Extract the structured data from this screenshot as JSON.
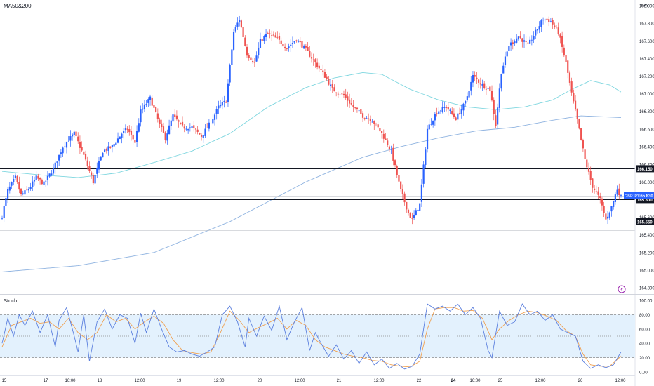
{
  "chart_data": [
    {
      "type": "candlestick",
      "title": "MA50&200",
      "currency_label": "JPY",
      "symbol": "GBPJPY",
      "ylim": [
        164.8,
        168.0
      ],
      "yticks": [
        "164.800",
        "165.000",
        "165.200",
        "165.400",
        "165.600",
        "165.800",
        "166.000",
        "166.200",
        "166.400",
        "166.600",
        "166.800",
        "167.000",
        "167.200",
        "167.400",
        "167.600",
        "167.800",
        "168.000"
      ],
      "hlines": [
        {
          "label": "166.150",
          "value": 166.15,
          "color": "#131722"
        },
        {
          "label": "165.800",
          "value": 165.8,
          "color": "#131722"
        },
        {
          "label": "165.550",
          "value": 165.55,
          "color": "#131722"
        }
      ],
      "last_price": {
        "symbol": "GBPJPY",
        "value": "165.830",
        "price": 165.83,
        "color": "#2962ff"
      },
      "colors": {
        "up": "#2962ff",
        "down": "#ef5350",
        "ma50": "#7ed6df",
        "ma200": "#8fb3e0"
      },
      "x_tick_labels": [
        "15",
        "17",
        "16:00",
        "18",
        "12:00",
        "19",
        "12:00",
        "20",
        "12:00",
        "21",
        "12:00",
        "22",
        "24",
        "16:00",
        "25",
        "12:00",
        "26",
        "12:00"
      ],
      "close_anchors": [
        [
          0,
          165.62
        ],
        [
          3,
          165.9
        ],
        [
          7,
          166.05
        ],
        [
          10,
          165.85
        ],
        [
          14,
          165.92
        ],
        [
          18,
          166.05
        ],
        [
          22,
          165.98
        ],
        [
          27,
          166.15
        ],
        [
          32,
          166.4
        ],
        [
          38,
          166.55
        ],
        [
          43,
          166.3
        ],
        [
          48,
          166.0
        ],
        [
          53,
          166.35
        ],
        [
          58,
          166.4
        ],
        [
          63,
          166.55
        ],
        [
          66,
          166.6
        ],
        [
          70,
          166.45
        ],
        [
          73,
          166.8
        ],
        [
          78,
          166.95
        ],
        [
          83,
          166.65
        ],
        [
          86,
          166.5
        ],
        [
          90,
          166.75
        ],
        [
          95,
          166.62
        ],
        [
          100,
          166.62
        ],
        [
          105,
          166.52
        ],
        [
          110,
          166.68
        ],
        [
          114,
          166.85
        ],
        [
          118,
          166.92
        ],
        [
          122,
          167.7
        ],
        [
          125,
          167.85
        ],
        [
          129,
          167.45
        ],
        [
          133,
          167.35
        ],
        [
          136,
          167.6
        ],
        [
          140,
          167.68
        ],
        [
          145,
          167.62
        ],
        [
          150,
          167.52
        ],
        [
          155,
          167.62
        ],
        [
          160,
          167.5
        ],
        [
          165,
          167.35
        ],
        [
          170,
          167.2
        ],
        [
          174,
          167.05
        ],
        [
          180,
          166.98
        ],
        [
          185,
          166.85
        ],
        [
          190,
          166.75
        ],
        [
          195,
          166.7
        ],
        [
          200,
          166.55
        ],
        [
          205,
          166.35
        ],
        [
          210,
          165.9
        ],
        [
          214,
          165.65
        ],
        [
          216,
          165.57
        ],
        [
          220,
          165.75
        ],
        [
          224,
          166.6
        ],
        [
          229,
          166.8
        ],
        [
          234,
          166.85
        ],
        [
          239,
          166.72
        ],
        [
          244,
          166.9
        ],
        [
          248,
          167.2
        ],
        [
          253,
          167.1
        ],
        [
          257,
          167.05
        ],
        [
          260,
          166.65
        ],
        [
          263,
          167.25
        ],
        [
          267,
          167.55
        ],
        [
          272,
          167.65
        ],
        [
          277,
          167.55
        ],
        [
          281,
          167.7
        ],
        [
          285,
          167.85
        ],
        [
          289,
          167.82
        ],
        [
          293,
          167.7
        ],
        [
          297,
          167.35
        ],
        [
          300,
          167.0
        ],
        [
          303,
          166.7
        ],
        [
          307,
          166.25
        ],
        [
          311,
          165.95
        ],
        [
          315,
          165.8
        ],
        [
          318,
          165.57
        ],
        [
          321,
          165.72
        ],
        [
          324,
          165.92
        ],
        [
          326,
          165.83
        ]
      ],
      "ma50_anchors": [
        [
          0,
          166.12
        ],
        [
          20,
          166.08
        ],
        [
          40,
          166.05
        ],
        [
          60,
          166.1
        ],
        [
          80,
          166.22
        ],
        [
          100,
          166.35
        ],
        [
          120,
          166.55
        ],
        [
          140,
          166.85
        ],
        [
          160,
          167.07
        ],
        [
          175,
          167.18
        ],
        [
          190,
          167.24
        ],
        [
          200,
          167.22
        ],
        [
          215,
          167.05
        ],
        [
          230,
          166.93
        ],
        [
          245,
          166.85
        ],
        [
          260,
          166.82
        ],
        [
          275,
          166.85
        ],
        [
          290,
          166.93
        ],
        [
          300,
          167.05
        ],
        [
          310,
          167.15
        ],
        [
          320,
          167.1
        ],
        [
          326,
          167.02
        ]
      ],
      "ma200_anchors": [
        [
          0,
          164.98
        ],
        [
          40,
          165.05
        ],
        [
          80,
          165.2
        ],
        [
          120,
          165.55
        ],
        [
          160,
          166.0
        ],
        [
          190,
          166.28
        ],
        [
          210,
          166.4
        ],
        [
          230,
          166.5
        ],
        [
          250,
          166.58
        ],
        [
          270,
          166.62
        ],
        [
          290,
          166.7
        ],
        [
          305,
          166.75
        ],
        [
          326,
          166.73
        ]
      ]
    },
    {
      "type": "line",
      "title": "Stoch",
      "ylim": [
        0,
        100
      ],
      "yticks": [
        "0.00",
        "20.00",
        "40.00",
        "60.00",
        "80.00",
        "100.00"
      ],
      "band": [
        20,
        80
      ],
      "colors": {
        "k": "#5b7fde",
        "d": "#f0a050",
        "band": "#e3f1fd",
        "band_line": "#8c8c8c"
      },
      "k_anchors": [
        [
          0,
          40
        ],
        [
          3,
          75
        ],
        [
          6,
          50
        ],
        [
          9,
          80
        ],
        [
          12,
          65
        ],
        [
          16,
          85
        ],
        [
          20,
          55
        ],
        [
          24,
          80
        ],
        [
          28,
          35
        ],
        [
          30,
          72
        ],
        [
          34,
          90
        ],
        [
          38,
          50
        ],
        [
          40,
          28
        ],
        [
          43,
          80
        ],
        [
          46,
          15
        ],
        [
          50,
          70
        ],
        [
          54,
          88
        ],
        [
          58,
          60
        ],
        [
          62,
          80
        ],
        [
          66,
          75
        ],
        [
          70,
          40
        ],
        [
          73,
          82
        ],
        [
          76,
          55
        ],
        [
          80,
          88
        ],
        [
          84,
          60
        ],
        [
          88,
          35
        ],
        [
          92,
          28
        ],
        [
          96,
          30
        ],
        [
          100,
          25
        ],
        [
          104,
          22
        ],
        [
          108,
          28
        ],
        [
          112,
          35
        ],
        [
          116,
          80
        ],
        [
          120,
          92
        ],
        [
          124,
          70
        ],
        [
          128,
          35
        ],
        [
          130,
          75
        ],
        [
          134,
          50
        ],
        [
          138,
          78
        ],
        [
          142,
          58
        ],
        [
          146,
          92
        ],
        [
          150,
          45
        ],
        [
          154,
          70
        ],
        [
          158,
          90
        ],
        [
          162,
          30
        ],
        [
          165,
          55
        ],
        [
          168,
          40
        ],
        [
          172,
          22
        ],
        [
          176,
          38
        ],
        [
          180,
          18
        ],
        [
          184,
          30
        ],
        [
          188,
          12
        ],
        [
          192,
          28
        ],
        [
          196,
          10
        ],
        [
          200,
          18
        ],
        [
          204,
          5
        ],
        [
          208,
          12
        ],
        [
          212,
          4
        ],
        [
          216,
          8
        ],
        [
          220,
          25
        ],
        [
          224,
          95
        ],
        [
          228,
          88
        ],
        [
          232,
          92
        ],
        [
          236,
          85
        ],
        [
          240,
          95
        ],
        [
          244,
          80
        ],
        [
          248,
          90
        ],
        [
          252,
          75
        ],
        [
          256,
          30
        ],
        [
          258,
          20
        ],
        [
          262,
          85
        ],
        [
          266,
          65
        ],
        [
          270,
          70
        ],
        [
          274,
          95
        ],
        [
          278,
          80
        ],
        [
          282,
          85
        ],
        [
          286,
          72
        ],
        [
          290,
          80
        ],
        [
          294,
          60
        ],
        [
          298,
          55
        ],
        [
          302,
          50
        ],
        [
          306,
          15
        ],
        [
          310,
          5
        ],
        [
          314,
          10
        ],
        [
          318,
          6
        ],
        [
          322,
          10
        ],
        [
          326,
          28
        ]
      ],
      "d_anchors": [
        [
          0,
          35
        ],
        [
          5,
          65
        ],
        [
          10,
          70
        ],
        [
          15,
          75
        ],
        [
          20,
          68
        ],
        [
          25,
          70
        ],
        [
          30,
          60
        ],
        [
          35,
          75
        ],
        [
          40,
          55
        ],
        [
          45,
          45
        ],
        [
          50,
          55
        ],
        [
          55,
          80
        ],
        [
          60,
          70
        ],
        [
          65,
          75
        ],
        [
          70,
          60
        ],
        [
          75,
          70
        ],
        [
          80,
          78
        ],
        [
          85,
          68
        ],
        [
          90,
          45
        ],
        [
          95,
          30
        ],
        [
          100,
          27
        ],
        [
          105,
          25
        ],
        [
          110,
          28
        ],
        [
          115,
          55
        ],
        [
          120,
          85
        ],
        [
          125,
          72
        ],
        [
          130,
          55
        ],
        [
          135,
          62
        ],
        [
          140,
          68
        ],
        [
          145,
          75
        ],
        [
          150,
          60
        ],
        [
          155,
          72
        ],
        [
          160,
          65
        ],
        [
          165,
          45
        ],
        [
          170,
          35
        ],
        [
          175,
          30
        ],
        [
          180,
          25
        ],
        [
          185,
          22
        ],
        [
          190,
          20
        ],
        [
          195,
          16
        ],
        [
          200,
          15
        ],
        [
          205,
          10
        ],
        [
          210,
          8
        ],
        [
          215,
          7
        ],
        [
          220,
          15
        ],
        [
          224,
          60
        ],
        [
          228,
          88
        ],
        [
          233,
          90
        ],
        [
          238,
          90
        ],
        [
          243,
          85
        ],
        [
          248,
          86
        ],
        [
          253,
          75
        ],
        [
          258,
          45
        ],
        [
          262,
          60
        ],
        [
          267,
          72
        ],
        [
          272,
          80
        ],
        [
          277,
          85
        ],
        [
          282,
          83
        ],
        [
          287,
          78
        ],
        [
          292,
          72
        ],
        [
          297,
          58
        ],
        [
          302,
          50
        ],
        [
          306,
          25
        ],
        [
          310,
          10
        ],
        [
          315,
          8
        ],
        [
          320,
          8
        ],
        [
          326,
          22
        ]
      ]
    }
  ]
}
